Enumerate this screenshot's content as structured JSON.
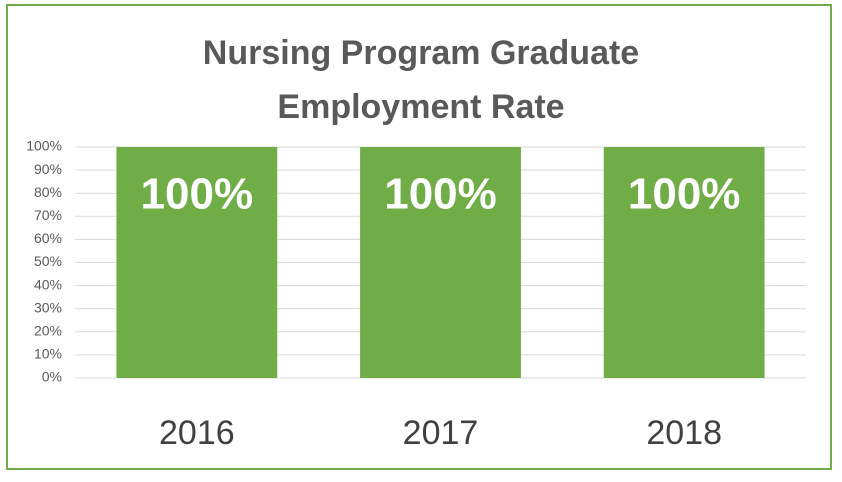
{
  "chart_data": {
    "type": "bar",
    "title": "Nursing Program Graduate Employment Rate",
    "categories": [
      "2016",
      "2017",
      "2018"
    ],
    "values": [
      100,
      100,
      100
    ],
    "value_labels": [
      "100%",
      "100%",
      "100%"
    ],
    "color": "#70ad47",
    "ylim": [
      0,
      100
    ],
    "yticks": [
      {
        "value": 0,
        "label": "0%"
      },
      {
        "value": 10,
        "label": "10%"
      },
      {
        "value": 20,
        "label": "20%"
      },
      {
        "value": 30,
        "label": "30%"
      },
      {
        "value": 40,
        "label": "40%"
      },
      {
        "value": 50,
        "label": "50%"
      },
      {
        "value": 60,
        "label": "60%"
      },
      {
        "value": 70,
        "label": "70%"
      },
      {
        "value": 80,
        "label": "80%"
      },
      {
        "value": 90,
        "label": "90%"
      },
      {
        "value": 100,
        "label": "100%"
      }
    ],
    "grid": true
  }
}
